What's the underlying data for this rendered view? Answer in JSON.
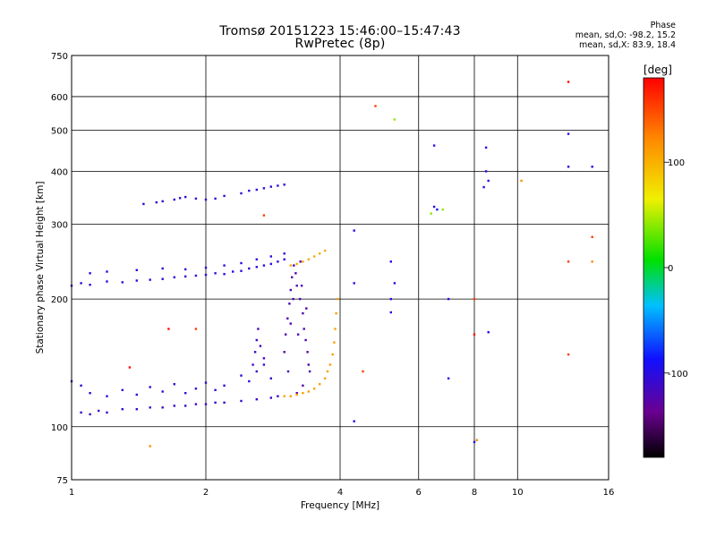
{
  "chart_data": {
    "type": "scatter",
    "title": "Tromsø 20151223 15:46:00–15:47:43",
    "subtitle": "RwPretec (8p)",
    "xlabel": "Frequency [MHz]",
    "ylabel": "Stationary phase Virtual Height [km]",
    "x_scale": "log",
    "y_scale": "log",
    "xlim": [
      1,
      16
    ],
    "ylim": [
      75,
      750
    ],
    "grid": true,
    "x_ticks": [
      1,
      2,
      4,
      6,
      8,
      10,
      16
    ],
    "x_tick_labels": [
      "1",
      "2",
      "4",
      "6",
      "8",
      "10",
      "16"
    ],
    "y_ticks": [
      75,
      100,
      200,
      300,
      400,
      500,
      600,
      750
    ],
    "y_tick_labels": [
      "75",
      "100",
      "200",
      "300",
      "400",
      "500",
      "600",
      "750"
    ],
    "phase_stats": {
      "header": "Phase",
      "line_o": "mean, sd,O:  -98.2, 15.2",
      "line_x": "mean, sd,X:  83.9, 18.4"
    },
    "colorbar": {
      "label": "[deg]",
      "min": -180,
      "max": 180,
      "ticks": [
        -100,
        0,
        100
      ],
      "tick_labels": [
        "-100",
        "0",
        "100"
      ]
    },
    "traces": [
      {
        "phase": -110,
        "points": [
          [
            1.05,
            108
          ],
          [
            1.1,
            107
          ],
          [
            1.15,
            109
          ],
          [
            1.2,
            108
          ],
          [
            1.3,
            110
          ],
          [
            1.4,
            110
          ],
          [
            1.5,
            111
          ],
          [
            1.6,
            111
          ],
          [
            1.7,
            112
          ],
          [
            1.8,
            112
          ],
          [
            1.9,
            113
          ],
          [
            2.0,
            113
          ],
          [
            2.1,
            114
          ],
          [
            2.2,
            114
          ],
          [
            2.4,
            115
          ],
          [
            2.6,
            116
          ],
          [
            2.8,
            117
          ],
          [
            2.9,
            118
          ]
        ]
      },
      {
        "phase": -105,
        "points": [
          [
            1.0,
            128
          ],
          [
            1.05,
            125
          ],
          [
            1.1,
            120
          ],
          [
            1.2,
            118
          ],
          [
            1.3,
            122
          ],
          [
            1.4,
            119
          ],
          [
            1.5,
            124
          ],
          [
            1.6,
            121
          ],
          [
            1.7,
            126
          ],
          [
            1.8,
            120
          ],
          [
            1.9,
            123
          ],
          [
            2.0,
            127
          ],
          [
            2.1,
            122
          ],
          [
            2.2,
            125
          ],
          [
            2.4,
            132
          ],
          [
            2.5,
            128
          ],
          [
            2.6,
            135
          ],
          [
            2.7,
            140
          ],
          [
            2.8,
            130
          ]
        ]
      },
      {
        "phase": -115,
        "points": [
          [
            2.55,
            140
          ],
          [
            2.58,
            150
          ],
          [
            2.6,
            160
          ],
          [
            2.62,
            170
          ],
          [
            2.65,
            155
          ],
          [
            2.7,
            145
          ]
        ]
      },
      {
        "phase": -120,
        "points": [
          [
            3.0,
            150
          ],
          [
            3.02,
            165
          ],
          [
            3.05,
            180
          ],
          [
            3.08,
            195
          ],
          [
            3.1,
            210
          ],
          [
            3.12,
            225
          ],
          [
            3.15,
            240
          ],
          [
            3.18,
            230
          ],
          [
            3.2,
            215
          ],
          [
            3.25,
            200
          ],
          [
            3.3,
            185
          ],
          [
            3.32,
            170
          ],
          [
            3.35,
            160
          ],
          [
            3.38,
            150
          ],
          [
            3.4,
            140
          ],
          [
            3.42,
            135
          ],
          [
            3.3,
            125
          ],
          [
            3.2,
            120
          ],
          [
            3.1,
            175
          ],
          [
            3.28,
            215
          ],
          [
            3.36,
            190
          ],
          [
            3.22,
            165
          ],
          [
            3.14,
            200
          ],
          [
            3.26,
            245
          ],
          [
            3.06,
            135
          ]
        ]
      },
      {
        "phase": -100,
        "points": [
          [
            1.0,
            215
          ],
          [
            1.05,
            218
          ],
          [
            1.1,
            216
          ],
          [
            1.2,
            220
          ],
          [
            1.3,
            219
          ],
          [
            1.4,
            221
          ],
          [
            1.5,
            222
          ],
          [
            1.6,
            223
          ],
          [
            1.7,
            225
          ],
          [
            1.8,
            226
          ],
          [
            1.9,
            227
          ],
          [
            2.0,
            228
          ],
          [
            2.1,
            230
          ],
          [
            2.2,
            229
          ],
          [
            2.3,
            232
          ],
          [
            2.4,
            233
          ],
          [
            2.5,
            236
          ],
          [
            2.6,
            238
          ],
          [
            2.7,
            240
          ],
          [
            2.8,
            242
          ],
          [
            2.9,
            245
          ],
          [
            3.0,
            248
          ]
        ]
      },
      {
        "phase": -100,
        "points": [
          [
            1.1,
            230
          ],
          [
            1.2,
            232
          ],
          [
            1.4,
            234
          ],
          [
            1.6,
            236
          ],
          [
            1.8,
            235
          ],
          [
            2.0,
            237
          ],
          [
            2.2,
            240
          ],
          [
            2.4,
            243
          ],
          [
            2.6,
            248
          ],
          [
            2.8,
            252
          ],
          [
            3.0,
            256
          ]
        ]
      },
      {
        "phase": -105,
        "points": [
          [
            1.45,
            335
          ],
          [
            1.55,
            338
          ],
          [
            1.6,
            340
          ],
          [
            1.7,
            343
          ],
          [
            1.75,
            346
          ],
          [
            1.8,
            348
          ],
          [
            1.9,
            345
          ],
          [
            2.0,
            343
          ],
          [
            2.1,
            345
          ],
          [
            2.2,
            350
          ],
          [
            2.4,
            355
          ],
          [
            2.5,
            360
          ],
          [
            2.6,
            362
          ],
          [
            2.7,
            365
          ],
          [
            2.8,
            368
          ],
          [
            2.9,
            370
          ],
          [
            3.0,
            372
          ]
        ]
      },
      {
        "phase": 110,
        "points": [
          [
            3.0,
            118
          ],
          [
            3.1,
            118
          ],
          [
            3.2,
            119
          ],
          [
            3.3,
            120
          ],
          [
            3.4,
            121
          ],
          [
            3.5,
            123
          ],
          [
            3.6,
            126
          ],
          [
            3.7,
            130
          ],
          [
            3.75,
            135
          ],
          [
            3.8,
            140
          ],
          [
            3.85,
            148
          ],
          [
            3.88,
            158
          ],
          [
            3.9,
            170
          ],
          [
            3.92,
            185
          ],
          [
            3.95,
            200
          ]
        ]
      },
      {
        "phase": 105,
        "points": [
          [
            3.1,
            240
          ],
          [
            3.2,
            242
          ],
          [
            3.3,
            245
          ],
          [
            3.4,
            248
          ],
          [
            3.5,
            252
          ],
          [
            3.6,
            256
          ],
          [
            3.7,
            260
          ]
        ]
      },
      {
        "phase": -95,
        "points": [
          [
            4.3,
            290
          ],
          [
            4.3,
            218
          ],
          [
            4.3,
            103
          ],
          [
            5.2,
            200
          ],
          [
            5.3,
            218
          ],
          [
            5.2,
            186
          ],
          [
            5.2,
            245
          ],
          [
            6.5,
            460
          ],
          [
            6.5,
            330
          ],
          [
            6.6,
            325
          ],
          [
            7.0,
            200
          ],
          [
            7.0,
            130
          ],
          [
            8.5,
            400
          ],
          [
            8.6,
            380
          ],
          [
            8.5,
            455
          ],
          [
            8.6,
            167
          ],
          [
            8.4,
            367
          ],
          [
            13.0,
            490
          ],
          [
            13.0,
            410
          ],
          [
            14.7,
            410
          ],
          [
            8.0,
            92
          ]
        ]
      },
      {
        "phase": 40,
        "points": [
          [
            6.4,
            318
          ],
          [
            6.8,
            325
          ],
          [
            5.3,
            530
          ]
        ]
      },
      {
        "phase": 120,
        "points": [
          [
            1.5,
            90
          ],
          [
            8.1,
            93
          ],
          [
            10.2,
            380
          ],
          [
            14.7,
            245
          ]
        ]
      },
      {
        "phase": 155,
        "points": [
          [
            4.8,
            570
          ],
          [
            4.5,
            135
          ],
          [
            8.0,
            200
          ],
          [
            13.0,
            245
          ],
          [
            13.0,
            148
          ],
          [
            14.7,
            280
          ],
          [
            1.9,
            170
          ],
          [
            2.7,
            315
          ]
        ]
      },
      {
        "phase": 175,
        "points": [
          [
            13.0,
            650
          ],
          [
            8.0,
            165
          ],
          [
            1.35,
            138
          ],
          [
            1.65,
            170
          ]
        ]
      }
    ]
  }
}
